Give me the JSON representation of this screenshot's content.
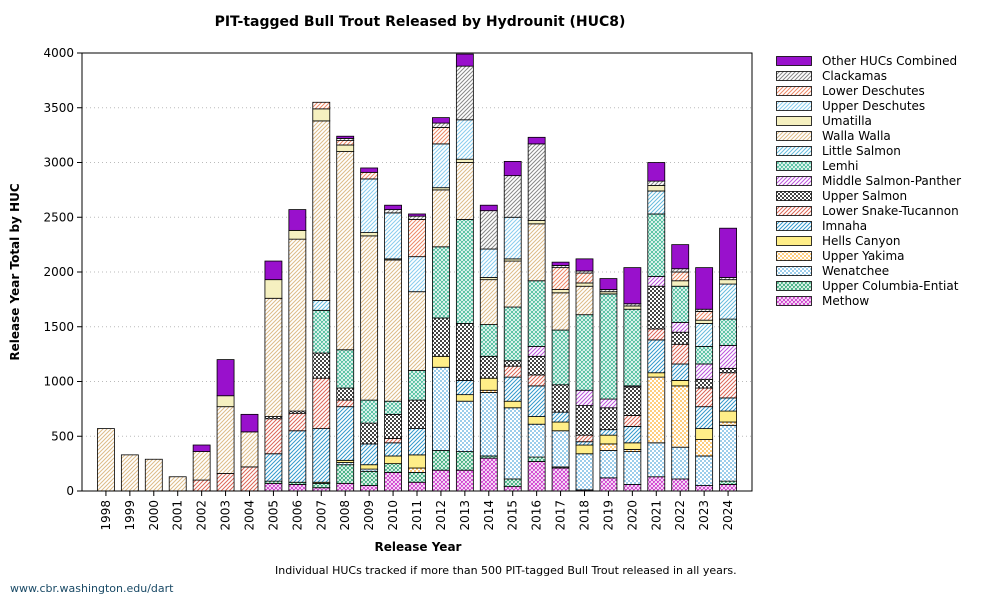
{
  "footnote": "Individual HUCs tracked if more than 500 PIT-tagged Bull Trout released in all years.",
  "credit": "www.cbr.washington.edu/dart",
  "chart_data": {
    "type": "bar",
    "stacked": true,
    "title": "PIT-tagged Bull Trout Released by Hydrounit (HUC8)",
    "xlabel": "Release Year",
    "ylabel": "Release Year Total by HUC",
    "ylim": [
      0,
      4000
    ],
    "yticks": [
      0,
      500,
      1000,
      1500,
      2000,
      2500,
      3000,
      3500,
      4000
    ],
    "grid": "horizontal dotted",
    "legend_position": "right",
    "categories": [
      "1998",
      "1999",
      "2000",
      "2001",
      "2002",
      "2003",
      "2004",
      "2005",
      "2006",
      "2007",
      "2008",
      "2009",
      "2010",
      "2011",
      "2012",
      "2013",
      "2014",
      "2015",
      "2016",
      "2017",
      "2018",
      "2019",
      "2020",
      "2021",
      "2022",
      "2023",
      "2024"
    ],
    "series": [
      {
        "name": "Methow",
        "color": "#cc33cc",
        "pattern": "grid",
        "values": [
          0,
          0,
          0,
          0,
          0,
          0,
          0,
          70,
          60,
          30,
          70,
          50,
          170,
          80,
          190,
          190,
          300,
          40,
          270,
          210,
          10,
          120,
          60,
          130,
          110,
          50,
          60
        ]
      },
      {
        "name": "Upper Columbia-Entiat",
        "color": "#33aa77",
        "pattern": "grid",
        "values": [
          0,
          0,
          0,
          0,
          0,
          0,
          0,
          20,
          20,
          40,
          170,
          130,
          80,
          90,
          180,
          170,
          20,
          70,
          40,
          10,
          0,
          0,
          0,
          0,
          0,
          0,
          30
        ]
      },
      {
        "name": "Wenatchee",
        "color": "#55aadd",
        "pattern": "dots",
        "values": [
          0,
          0,
          0,
          0,
          0,
          0,
          0,
          0,
          0,
          0,
          20,
          20,
          0,
          0,
          760,
          460,
          580,
          650,
          300,
          330,
          330,
          250,
          300,
          310,
          290,
          270,
          510
        ]
      },
      {
        "name": "Upper Yakima",
        "color": "#ffaa22",
        "pattern": "dots",
        "values": [
          0,
          0,
          0,
          0,
          0,
          0,
          0,
          0,
          0,
          0,
          0,
          0,
          0,
          40,
          0,
          0,
          20,
          0,
          0,
          0,
          0,
          60,
          20,
          600,
          560,
          150,
          30
        ]
      },
      {
        "name": "Hells Canyon",
        "color": "#ffee88",
        "pattern": "solid",
        "values": [
          0,
          0,
          0,
          0,
          0,
          0,
          0,
          0,
          0,
          10,
          20,
          40,
          70,
          120,
          100,
          60,
          110,
          60,
          70,
          80,
          80,
          80,
          60,
          40,
          50,
          100,
          100
        ]
      },
      {
        "name": "Imnaha",
        "color": "#3399cc",
        "pattern": "diag",
        "values": [
          0,
          0,
          0,
          0,
          0,
          0,
          0,
          250,
          470,
          490,
          490,
          190,
          120,
          240,
          0,
          130,
          0,
          220,
          280,
          90,
          30,
          50,
          150,
          300,
          150,
          200,
          120
        ]
      },
      {
        "name": "Lower Snake-Tucannon",
        "color": "#dd6655",
        "pattern": "diag",
        "values": [
          0,
          0,
          0,
          0,
          100,
          160,
          220,
          320,
          160,
          460,
          60,
          0,
          40,
          0,
          0,
          0,
          0,
          100,
          100,
          0,
          60,
          0,
          100,
          100,
          180,
          170,
          230
        ]
      },
      {
        "name": "Upper Salmon",
        "color": "#444444",
        "pattern": "checker",
        "values": [
          0,
          0,
          0,
          0,
          0,
          0,
          0,
          20,
          20,
          230,
          110,
          190,
          220,
          260,
          350,
          520,
          200,
          50,
          170,
          250,
          270,
          200,
          260,
          390,
          110,
          80,
          40
        ]
      },
      {
        "name": "Middle Salmon-Panther",
        "color": "#bb55dd",
        "pattern": "diag",
        "values": [
          0,
          0,
          0,
          0,
          0,
          0,
          0,
          0,
          0,
          0,
          0,
          0,
          0,
          0,
          0,
          0,
          0,
          0,
          90,
          0,
          140,
          80,
          10,
          90,
          90,
          140,
          210
        ]
      },
      {
        "name": "Lemhi",
        "color": "#44bb99",
        "pattern": "grid",
        "values": [
          0,
          0,
          0,
          0,
          0,
          0,
          0,
          0,
          0,
          390,
          350,
          210,
          120,
          270,
          650,
          950,
          290,
          490,
          600,
          500,
          690,
          960,
          700,
          570,
          330,
          160,
          240
        ]
      },
      {
        "name": "Little Salmon",
        "color": "#66bbdd",
        "pattern": "diag",
        "values": [
          0,
          0,
          0,
          0,
          0,
          0,
          0,
          0,
          0,
          90,
          0,
          0,
          0,
          0,
          0,
          0,
          0,
          0,
          0,
          0,
          0,
          0,
          0,
          210,
          0,
          210,
          320
        ]
      },
      {
        "name": "Walla Walla",
        "color": "#ddbb88",
        "pattern": "diag",
        "values": [
          570,
          330,
          290,
          130,
          260,
          610,
          320,
          1080,
          1570,
          1640,
          1810,
          1500,
          1290,
          720,
          520,
          520,
          410,
          420,
          520,
          340,
          260,
          0,
          0,
          0,
          0,
          0,
          0
        ]
      },
      {
        "name": "Umatilla",
        "color": "#f5f0c0",
        "pattern": "solid",
        "values": [
          0,
          0,
          0,
          0,
          0,
          100,
          0,
          170,
          80,
          110,
          60,
          30,
          10,
          0,
          20,
          30,
          20,
          20,
          30,
          30,
          30,
          20,
          30,
          50,
          50,
          30,
          40
        ]
      },
      {
        "name": "Upper Deschutes",
        "color": "#88ccee",
        "pattern": "diag",
        "values": [
          0,
          0,
          0,
          0,
          0,
          0,
          0,
          0,
          0,
          0,
          0,
          490,
          420,
          320,
          400,
          360,
          260,
          380,
          0,
          0,
          0,
          0,
          0,
          0,
          0,
          0,
          0
        ]
      },
      {
        "name": "Lower Deschutes",
        "color": "#ee8866",
        "pattern": "diag",
        "values": [
          0,
          0,
          0,
          0,
          0,
          0,
          0,
          0,
          0,
          60,
          40,
          60,
          0,
          340,
          150,
          0,
          0,
          0,
          0,
          200,
          90,
          0,
          0,
          0,
          80,
          80,
          0
        ]
      },
      {
        "name": "Clackamas",
        "color": "#888888",
        "pattern": "diag",
        "values": [
          0,
          0,
          0,
          0,
          0,
          0,
          0,
          0,
          0,
          0,
          20,
          0,
          30,
          30,
          40,
          490,
          350,
          380,
          700,
          20,
          20,
          20,
          20,
          40,
          30,
          20,
          20
        ]
      },
      {
        "name": "Other HUCs Combined",
        "color": "#9911cc",
        "pattern": "solid",
        "values": [
          0,
          0,
          0,
          0,
          60,
          330,
          160,
          170,
          190,
          0,
          20,
          40,
          40,
          20,
          50,
          110,
          50,
          130,
          60,
          30,
          110,
          100,
          330,
          170,
          220,
          380,
          450
        ]
      }
    ]
  }
}
